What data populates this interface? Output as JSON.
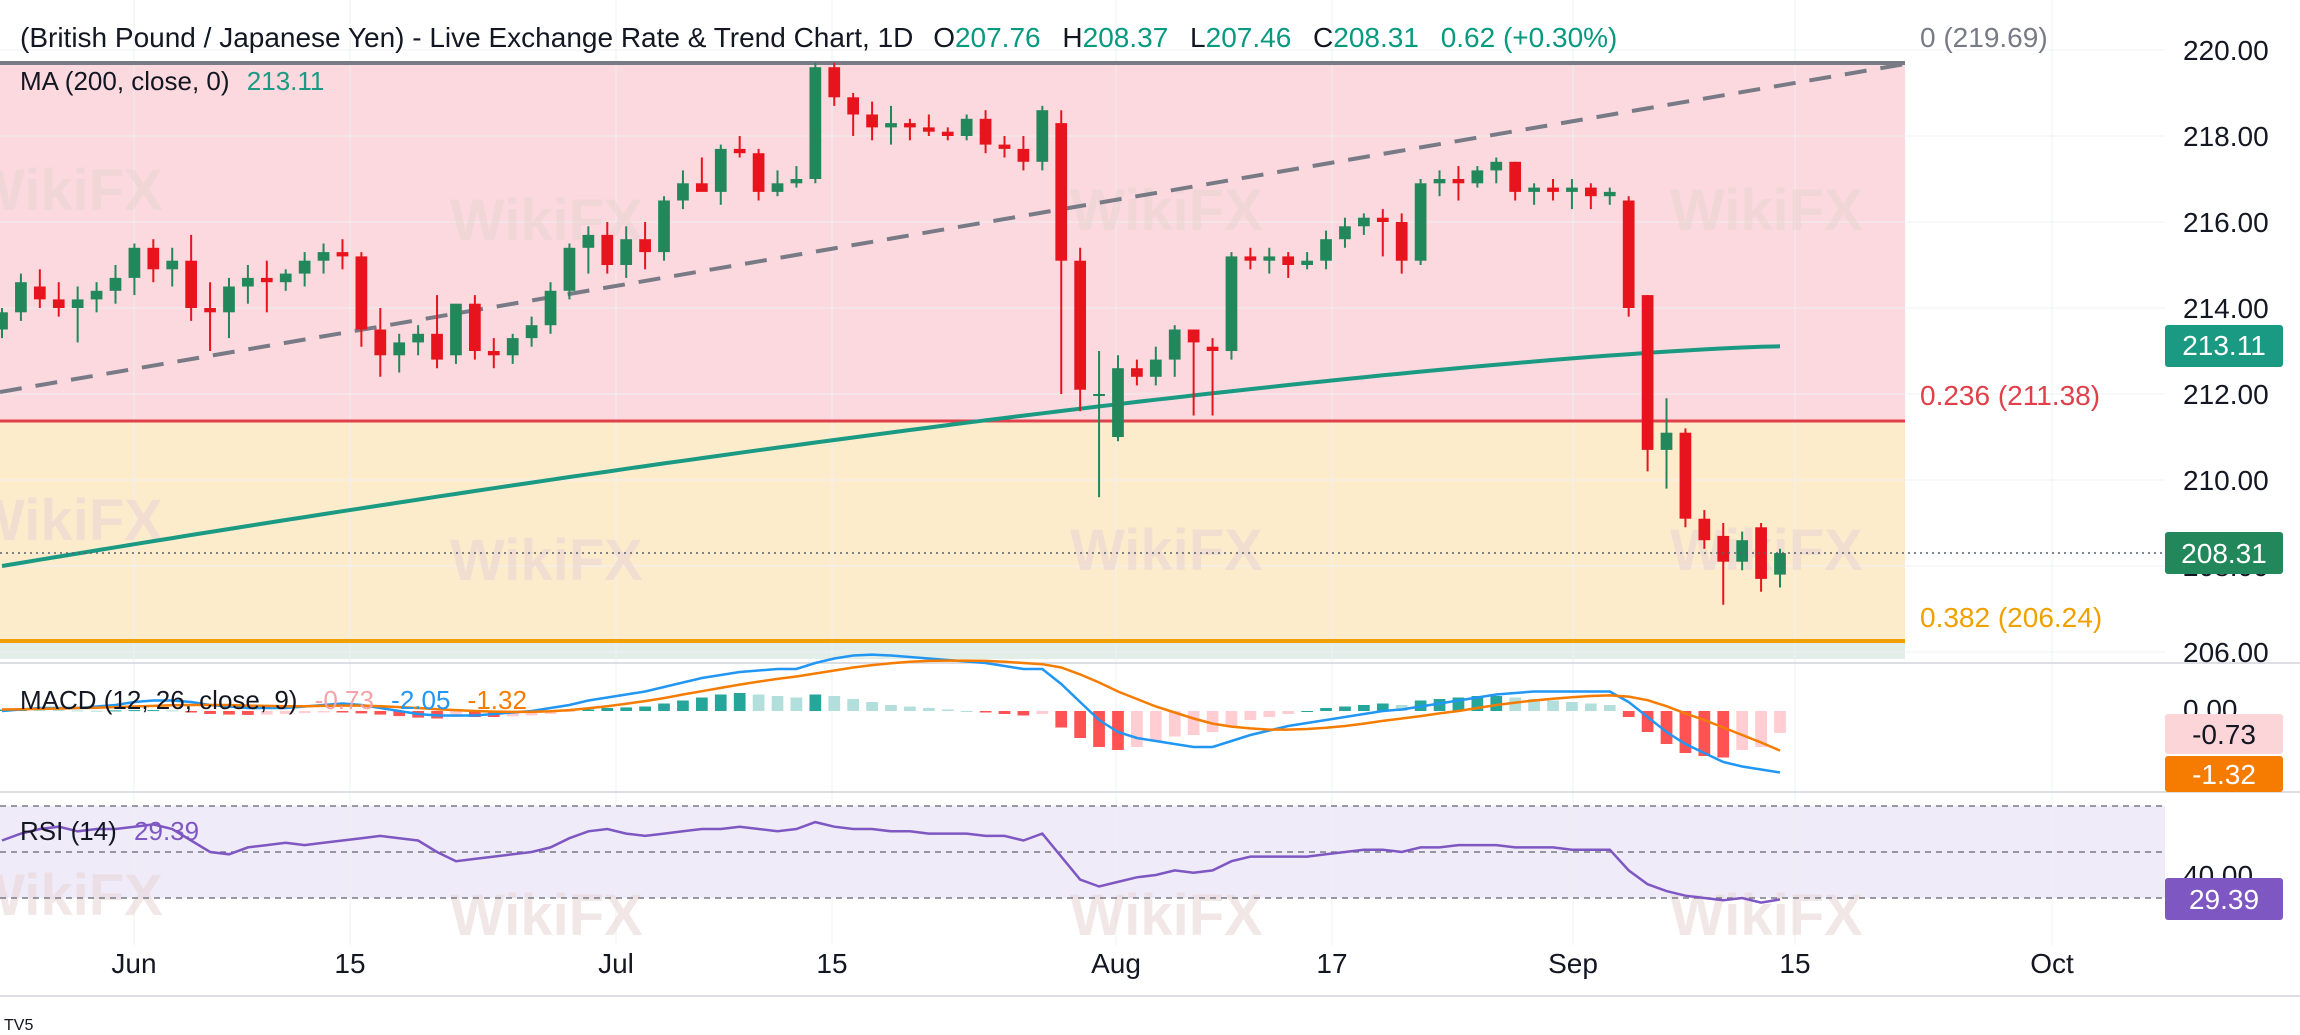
{
  "header": {
    "title": "(British Pound / Japanese Yen) - Live Exchange Rate & Trend Chart, 1D",
    "o_label": "O",
    "o_value": "207.76",
    "h_label": "H",
    "h_value": "208.37",
    "l_label": "L",
    "l_value": "207.46",
    "c_label": "C",
    "c_value": "208.31",
    "change": "0.62 (+0.30%)"
  },
  "ma_legend": {
    "label": "MA (200, close, 0)",
    "value": "213.11"
  },
  "fib_levels": [
    {
      "label": "0 (219.69)",
      "price": 219.69
    },
    {
      "label": "0.236 (211.38)",
      "price": 211.38
    },
    {
      "label": "0.382 (206.24)",
      "price": 206.24
    }
  ],
  "badges": {
    "ma": "213.11",
    "last": "208.31",
    "macd_hist": "-0.73",
    "macd_signal": "-1.32",
    "rsi": "29.39"
  },
  "macd_legend": {
    "label": "MACD (12, 26, close, 9)",
    "hist": "-0.73",
    "macd": "-2.05",
    "signal": "-1.32"
  },
  "rsi_legend": {
    "label": "RSI (14)",
    "value": "29.39"
  },
  "macd_axis_label": "0.00",
  "rsi_axis_label": "40.00",
  "watermark": "WikiFX",
  "footer_text": "TV5",
  "colors": {
    "up": "#22875b",
    "down": "#e8141d",
    "ma": "#1a9a82",
    "fib0": "#787b86",
    "fib236": "#e0404a",
    "fib382": "#f0a000",
    "macd": "#2196f3",
    "signal": "#f57c00",
    "rsi": "#7e57c2",
    "zone_top": "#fbd9de",
    "zone_mid": "#fdeccc"
  },
  "chart_data": {
    "type": "candlestick",
    "symbol": "GBP/JPY",
    "interval": "1D",
    "x_ticks": [
      "Jun",
      "15",
      "Jul",
      "15",
      "Aug",
      "17",
      "Sep",
      "15",
      "Oct"
    ],
    "y_ticks": [
      "220.00",
      "218.00",
      "216.00",
      "214.00",
      "212.00",
      "210.00",
      "208.00",
      "206.00"
    ],
    "ylim": [
      205.6,
      220.6
    ],
    "candles": [
      [
        213.5,
        214.0,
        213.3,
        213.9
      ],
      [
        213.9,
        214.8,
        213.7,
        214.6
      ],
      [
        214.5,
        214.9,
        214.0,
        214.2
      ],
      [
        214.2,
        214.6,
        213.8,
        214.0
      ],
      [
        214.0,
        214.5,
        213.2,
        214.2
      ],
      [
        214.2,
        214.6,
        213.9,
        214.4
      ],
      [
        214.4,
        215.0,
        214.1,
        214.7
      ],
      [
        214.7,
        215.5,
        214.3,
        215.4
      ],
      [
        215.4,
        215.6,
        214.6,
        214.9
      ],
      [
        214.9,
        215.4,
        214.5,
        215.1
      ],
      [
        215.1,
        215.7,
        213.7,
        214.0
      ],
      [
        214.0,
        214.6,
        213.0,
        213.9
      ],
      [
        213.9,
        214.7,
        213.3,
        214.5
      ],
      [
        214.5,
        215.0,
        214.1,
        214.7
      ],
      [
        214.7,
        215.1,
        213.9,
        214.6
      ],
      [
        214.6,
        214.9,
        214.4,
        214.8
      ],
      [
        214.8,
        215.3,
        214.5,
        215.1
      ],
      [
        215.1,
        215.5,
        214.8,
        215.3
      ],
      [
        215.3,
        215.6,
        214.9,
        215.2
      ],
      [
        215.2,
        215.3,
        213.1,
        213.5
      ],
      [
        213.5,
        214.0,
        212.4,
        212.9
      ],
      [
        212.9,
        213.4,
        212.5,
        213.2
      ],
      [
        213.2,
        213.6,
        212.9,
        213.4
      ],
      [
        213.4,
        214.3,
        212.6,
        212.8
      ],
      [
        212.9,
        214.0,
        212.7,
        214.1
      ],
      [
        214.1,
        214.3,
        212.8,
        213.0
      ],
      [
        213.0,
        213.3,
        212.6,
        212.9
      ],
      [
        212.9,
        213.4,
        212.7,
        213.3
      ],
      [
        213.3,
        213.8,
        213.1,
        213.6
      ],
      [
        213.6,
        214.6,
        213.4,
        214.4
      ],
      [
        214.4,
        215.5,
        214.2,
        215.4
      ],
      [
        215.4,
        215.9,
        214.8,
        215.7
      ],
      [
        215.7,
        216.0,
        214.8,
        215.0
      ],
      [
        215.0,
        215.9,
        214.7,
        215.6
      ],
      [
        215.6,
        216.0,
        214.9,
        215.3
      ],
      [
        215.3,
        216.6,
        215.1,
        216.5
      ],
      [
        216.5,
        217.2,
        216.3,
        216.9
      ],
      [
        216.9,
        217.5,
        216.8,
        216.7
      ],
      [
        216.7,
        217.8,
        216.4,
        217.7
      ],
      [
        217.7,
        218.0,
        217.5,
        217.6
      ],
      [
        217.6,
        217.7,
        216.5,
        216.7
      ],
      [
        216.7,
        217.2,
        216.6,
        216.9
      ],
      [
        216.9,
        217.3,
        216.8,
        217.0
      ],
      [
        217.0,
        219.7,
        216.9,
        219.6
      ],
      [
        219.6,
        219.7,
        218.7,
        218.9
      ],
      [
        218.9,
        219.0,
        218.0,
        218.5
      ],
      [
        218.5,
        218.8,
        217.9,
        218.2
      ],
      [
        218.2,
        218.7,
        217.8,
        218.3
      ],
      [
        218.3,
        218.4,
        217.9,
        218.2
      ],
      [
        218.2,
        218.5,
        218.0,
        218.1
      ],
      [
        218.1,
        218.2,
        217.9,
        218.0
      ],
      [
        218.0,
        218.5,
        217.9,
        218.4
      ],
      [
        218.4,
        218.6,
        217.6,
        217.8
      ],
      [
        217.8,
        218.0,
        217.5,
        217.7
      ],
      [
        217.7,
        218.0,
        217.2,
        217.4
      ],
      [
        217.4,
        218.7,
        217.2,
        218.6
      ],
      [
        218.3,
        218.6,
        212.0,
        215.1
      ],
      [
        215.1,
        215.4,
        211.6,
        212.1
      ],
      [
        212.0,
        213.0,
        209.6,
        212.0
      ],
      [
        211.0,
        212.9,
        210.9,
        212.6
      ],
      [
        212.6,
        212.8,
        212.2,
        212.4
      ],
      [
        212.4,
        213.1,
        212.2,
        212.8
      ],
      [
        212.8,
        213.6,
        212.4,
        213.5
      ],
      [
        213.5,
        213.5,
        211.5,
        213.2
      ],
      [
        213.1,
        213.3,
        211.5,
        213.0
      ],
      [
        213.0,
        215.3,
        212.8,
        215.2
      ],
      [
        215.2,
        215.4,
        214.9,
        215.1
      ],
      [
        215.1,
        215.4,
        214.8,
        215.2
      ],
      [
        215.2,
        215.3,
        214.7,
        215.0
      ],
      [
        215.0,
        215.3,
        214.9,
        215.1
      ],
      [
        215.1,
        215.8,
        214.9,
        215.6
      ],
      [
        215.6,
        216.1,
        215.4,
        215.9
      ],
      [
        215.9,
        216.2,
        215.7,
        216.1
      ],
      [
        216.1,
        216.3,
        215.2,
        216.0
      ],
      [
        216.0,
        216.2,
        214.8,
        215.1
      ],
      [
        215.1,
        217.0,
        215.0,
        216.9
      ],
      [
        216.9,
        217.2,
        216.6,
        217.0
      ],
      [
        217.0,
        217.3,
        216.5,
        216.9
      ],
      [
        216.9,
        217.3,
        216.8,
        217.2
      ],
      [
        217.2,
        217.5,
        216.9,
        217.4
      ],
      [
        217.4,
        217.4,
        216.5,
        216.7
      ],
      [
        216.7,
        216.9,
        216.4,
        216.8
      ],
      [
        216.8,
        217.0,
        216.5,
        216.7
      ],
      [
        216.7,
        217.0,
        216.3,
        216.8
      ],
      [
        216.8,
        216.9,
        216.3,
        216.6
      ],
      [
        216.6,
        216.8,
        216.4,
        216.7
      ],
      [
        216.5,
        216.6,
        213.8,
        214.0
      ],
      [
        214.3,
        214.3,
        210.2,
        210.7
      ],
      [
        210.7,
        211.9,
        209.8,
        211.1
      ],
      [
        211.1,
        211.2,
        208.9,
        209.1
      ],
      [
        209.1,
        209.3,
        208.4,
        208.6
      ],
      [
        208.7,
        209.0,
        207.1,
        208.1
      ],
      [
        208.1,
        208.8,
        207.9,
        208.6
      ],
      [
        208.9,
        209.0,
        207.4,
        207.7
      ],
      [
        207.8,
        208.4,
        207.5,
        208.3
      ]
    ],
    "ma200": {
      "name": "MA (200, close, 0)",
      "start": 208.0,
      "end": 213.11
    },
    "macd": {
      "legend": "MACD (12, 26, close, 9)",
      "ylim": [
        -3.0,
        3.0
      ],
      "hist": [
        0.05,
        0.06,
        0.05,
        0.04,
        0.02,
        0.01,
        0.02,
        0.03,
        0.03,
        0.02,
        -0.05,
        -0.1,
        -0.12,
        -0.13,
        -0.12,
        -0.1,
        -0.07,
        -0.05,
        -0.05,
        -0.08,
        -0.12,
        -0.17,
        -0.22,
        -0.25,
        -0.2,
        -0.2,
        -0.2,
        -0.18,
        -0.15,
        -0.1,
        -0.02,
        0.05,
        0.1,
        0.12,
        0.15,
        0.25,
        0.35,
        0.45,
        0.55,
        0.6,
        0.55,
        0.5,
        0.45,
        0.55,
        0.5,
        0.4,
        0.3,
        0.2,
        0.15,
        0.1,
        0.05,
        0.0,
        -0.05,
        -0.1,
        -0.15,
        -0.1,
        -0.55,
        -0.9,
        -1.2,
        -1.3,
        -1.2,
        -1.0,
        -0.85,
        -0.8,
        -0.7,
        -0.5,
        -0.3,
        -0.2,
        -0.1,
        0.0,
        0.1,
        0.15,
        0.2,
        0.25,
        0.2,
        0.35,
        0.4,
        0.45,
        0.5,
        0.5,
        0.45,
        0.4,
        0.35,
        0.3,
        0.25,
        0.2,
        -0.2,
        -0.7,
        -1.1,
        -1.4,
        -1.5,
        -1.55,
        -1.3,
        -1.2,
        -0.73
      ],
      "macd_line": [
        0.0,
        0.05,
        0.1,
        0.1,
        0.1,
        0.15,
        0.2,
        0.3,
        0.35,
        0.35,
        0.3,
        0.2,
        0.15,
        0.1,
        0.1,
        0.1,
        0.15,
        0.2,
        0.25,
        0.2,
        0.1,
        0.0,
        -0.1,
        -0.15,
        -0.15,
        -0.15,
        -0.1,
        -0.05,
        0.0,
        0.1,
        0.2,
        0.35,
        0.45,
        0.55,
        0.65,
        0.8,
        0.95,
        1.1,
        1.2,
        1.3,
        1.35,
        1.4,
        1.4,
        1.6,
        1.75,
        1.85,
        1.88,
        1.85,
        1.8,
        1.75,
        1.7,
        1.65,
        1.6,
        1.5,
        1.4,
        1.4,
        0.9,
        0.3,
        -0.3,
        -0.7,
        -0.9,
        -1.0,
        -1.1,
        -1.2,
        -1.2,
        -1.0,
        -0.8,
        -0.65,
        -0.5,
        -0.4,
        -0.3,
        -0.2,
        -0.1,
        0.0,
        0.05,
        0.15,
        0.25,
        0.35,
        0.45,
        0.55,
        0.6,
        0.65,
        0.65,
        0.65,
        0.65,
        0.65,
        0.3,
        -0.2,
        -0.7,
        -1.1,
        -1.4,
        -1.7,
        -1.85,
        -1.95,
        -2.05
      ],
      "signal_line": [
        0.05,
        0.06,
        0.07,
        0.08,
        0.1,
        0.11,
        0.13,
        0.15,
        0.17,
        0.19,
        0.2,
        0.2,
        0.2,
        0.18,
        0.17,
        0.16,
        0.16,
        0.17,
        0.18,
        0.18,
        0.16,
        0.13,
        0.1,
        0.06,
        0.03,
        0.0,
        -0.02,
        -0.03,
        -0.03,
        -0.01,
        0.03,
        0.09,
        0.16,
        0.24,
        0.33,
        0.43,
        0.55,
        0.66,
        0.77,
        0.88,
        0.98,
        1.07,
        1.15,
        1.25,
        1.35,
        1.45,
        1.53,
        1.59,
        1.64,
        1.67,
        1.68,
        1.68,
        1.67,
        1.64,
        1.6,
        1.56,
        1.45,
        1.22,
        0.95,
        0.65,
        0.4,
        0.15,
        -0.05,
        -0.25,
        -0.42,
        -0.52,
        -0.58,
        -0.62,
        -0.62,
        -0.6,
        -0.56,
        -0.5,
        -0.42,
        -0.33,
        -0.25,
        -0.17,
        -0.08,
        0.0,
        0.1,
        0.2,
        0.28,
        0.35,
        0.41,
        0.46,
        0.5,
        0.52,
        0.48,
        0.36,
        0.16,
        -0.08,
        -0.3,
        -0.55,
        -0.8,
        -1.05,
        -1.32
      ]
    },
    "rsi": {
      "legend": "RSI (14)",
      "ylim": [
        20,
        80
      ],
      "values": [
        55,
        58,
        60,
        61,
        59,
        60,
        60,
        61,
        62,
        60,
        55,
        50,
        49,
        52,
        53,
        54,
        53,
        54,
        55,
        56,
        57,
        56,
        55,
        50,
        46,
        47,
        48,
        49,
        50,
        52,
        56,
        59,
        60,
        58,
        57,
        58,
        59,
        60,
        60,
        61,
        60,
        59,
        60,
        63,
        61,
        60,
        60,
        59,
        59,
        58,
        58,
        58,
        57,
        57,
        55,
        58,
        48,
        38,
        35,
        37,
        39,
        40,
        42,
        41,
        42,
        46,
        48,
        48,
        48,
        48,
        49,
        50,
        51,
        51,
        50,
        52,
        52,
        53,
        53,
        53,
        52,
        52,
        52,
        51,
        51,
        51,
        42,
        36,
        33,
        31,
        30,
        29,
        30,
        28,
        29.39
      ]
    }
  }
}
